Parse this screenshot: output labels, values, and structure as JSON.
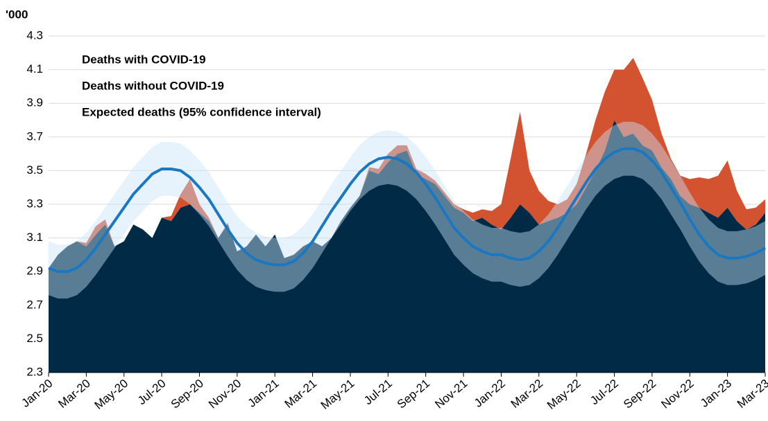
{
  "chart_data": {
    "type": "area",
    "y_label": "'000",
    "categories": [
      "Jan-20",
      null,
      null,
      null,
      "Mar-20",
      null,
      null,
      null,
      "May-20",
      null,
      null,
      null,
      "Jul-20",
      null,
      null,
      null,
      "Sep-20",
      null,
      null,
      null,
      "Nov-20",
      null,
      null,
      null,
      "Jan-21",
      null,
      null,
      null,
      "Mar-21",
      null,
      null,
      null,
      "May-21",
      null,
      null,
      null,
      "Jul-21",
      null,
      null,
      null,
      "Sep-21",
      null,
      null,
      null,
      "Nov-21",
      null,
      null,
      null,
      "Jan-22",
      null,
      null,
      null,
      "Mar-22",
      null,
      null,
      null,
      "May-22",
      null,
      null,
      null,
      "Jul-22",
      null,
      null,
      null,
      "Sep-22",
      null,
      null,
      null,
      "Nov-22",
      null,
      null,
      null,
      "Jan-23",
      null,
      null,
      null,
      "Mar-23"
    ],
    "series": [
      {
        "name": "Deaths with COVID-19",
        "color": "#d35230",
        "values": [
          0,
          0,
          0,
          0,
          0.02,
          0.05,
          0.03,
          0,
          0,
          0,
          0,
          0,
          0,
          0.03,
          0.08,
          0.15,
          0.05,
          0.02,
          0,
          0.01,
          0,
          0,
          0,
          0,
          0,
          0,
          0,
          0,
          0,
          0,
          0,
          0,
          0,
          0,
          0.02,
          0.03,
          0.05,
          0.05,
          0.03,
          0.03,
          0.03,
          0.02,
          0.02,
          0.02,
          0.02,
          0.05,
          0.05,
          0.08,
          0.15,
          0.35,
          0.55,
          0.25,
          0.2,
          0.12,
          0.08,
          0.08,
          0.12,
          0.2,
          0.3,
          0.35,
          0.3,
          0.4,
          0.45,
          0.4,
          0.3,
          0.2,
          0.12,
          0.12,
          0.15,
          0.18,
          0.2,
          0.25,
          0.28,
          0.18,
          0.12,
          0.1,
          0.08
        ]
      },
      {
        "name": "Deaths without COVID-19",
        "color": "#002a46",
        "values": [
          2.92,
          3.0,
          3.05,
          3.08,
          3.05,
          3.12,
          3.18,
          3.05,
          3.08,
          3.18,
          3.15,
          3.1,
          3.22,
          3.2,
          3.28,
          3.3,
          3.25,
          3.2,
          3.1,
          3.18,
          3.02,
          3.05,
          3.12,
          3.05,
          3.12,
          2.98,
          3.0,
          3.05,
          3.08,
          3.05,
          3.1,
          3.2,
          3.28,
          3.35,
          3.5,
          3.48,
          3.55,
          3.6,
          3.62,
          3.48,
          3.45,
          3.42,
          3.35,
          3.28,
          3.25,
          3.2,
          3.22,
          3.18,
          3.15,
          3.22,
          3.3,
          3.25,
          3.18,
          3.2,
          3.22,
          3.25,
          3.3,
          3.4,
          3.5,
          3.62,
          3.8,
          3.7,
          3.72,
          3.65,
          3.62,
          3.52,
          3.45,
          3.35,
          3.3,
          3.28,
          3.25,
          3.22,
          3.28,
          3.2,
          3.15,
          3.18,
          3.25
        ]
      },
      {
        "name": "Expected deaths (95% confidence interval)",
        "color": "#1a78c2",
        "band_color": "#c8e3f8",
        "values": [
          2.92,
          2.9,
          2.9,
          2.92,
          2.97,
          3.04,
          3.12,
          3.2,
          3.28,
          3.36,
          3.42,
          3.48,
          3.51,
          3.51,
          3.5,
          3.46,
          3.4,
          3.33,
          3.24,
          3.15,
          3.07,
          3.01,
          2.97,
          2.95,
          2.94,
          2.94,
          2.96,
          3.01,
          3.08,
          3.17,
          3.26,
          3.34,
          3.42,
          3.49,
          3.54,
          3.57,
          3.58,
          3.57,
          3.54,
          3.49,
          3.42,
          3.34,
          3.25,
          3.16,
          3.1,
          3.05,
          3.02,
          3.0,
          3.0,
          2.98,
          2.97,
          2.98,
          3.02,
          3.08,
          3.16,
          3.25,
          3.34,
          3.43,
          3.51,
          3.57,
          3.61,
          3.63,
          3.63,
          3.61,
          3.56,
          3.49,
          3.4,
          3.31,
          3.21,
          3.12,
          3.05,
          3.0,
          2.98,
          2.98,
          2.99,
          3.01,
          3.04
        ],
        "lower": [
          2.76,
          2.74,
          2.74,
          2.76,
          2.81,
          2.88,
          2.96,
          3.04,
          3.12,
          3.2,
          3.26,
          3.32,
          3.35,
          3.35,
          3.34,
          3.3,
          3.24,
          3.17,
          3.08,
          2.99,
          2.91,
          2.85,
          2.81,
          2.79,
          2.78,
          2.78,
          2.8,
          2.85,
          2.92,
          3.01,
          3.1,
          3.18,
          3.26,
          3.33,
          3.38,
          3.41,
          3.42,
          3.41,
          3.38,
          3.33,
          3.26,
          3.18,
          3.09,
          3.0,
          2.94,
          2.89,
          2.86,
          2.84,
          2.84,
          2.82,
          2.81,
          2.82,
          2.86,
          2.92,
          3.0,
          3.09,
          3.18,
          3.27,
          3.35,
          3.41,
          3.45,
          3.47,
          3.47,
          3.45,
          3.4,
          3.33,
          3.24,
          3.15,
          3.05,
          2.96,
          2.89,
          2.84,
          2.82,
          2.82,
          2.83,
          2.85,
          2.88
        ],
        "upper": [
          3.08,
          3.06,
          3.06,
          3.08,
          3.13,
          3.2,
          3.28,
          3.36,
          3.44,
          3.52,
          3.58,
          3.64,
          3.67,
          3.67,
          3.66,
          3.62,
          3.56,
          3.49,
          3.4,
          3.31,
          3.23,
          3.17,
          3.13,
          3.11,
          3.1,
          3.1,
          3.12,
          3.17,
          3.24,
          3.33,
          3.42,
          3.5,
          3.58,
          3.65,
          3.7,
          3.73,
          3.74,
          3.73,
          3.7,
          3.65,
          3.58,
          3.5,
          3.41,
          3.32,
          3.26,
          3.21,
          3.18,
          3.16,
          3.16,
          3.14,
          3.13,
          3.14,
          3.18,
          3.24,
          3.32,
          3.41,
          3.5,
          3.59,
          3.67,
          3.73,
          3.77,
          3.79,
          3.79,
          3.77,
          3.72,
          3.65,
          3.56,
          3.47,
          3.37,
          3.28,
          3.21,
          3.16,
          3.14,
          3.14,
          3.15,
          3.17,
          3.2
        ]
      }
    ],
    "ylim": [
      2.3,
      4.3
    ],
    "yticks": [
      2.3,
      2.5,
      2.7,
      2.9,
      3.1,
      3.3,
      3.5,
      3.7,
      3.9,
      4.1,
      4.3
    ],
    "grid": true
  }
}
